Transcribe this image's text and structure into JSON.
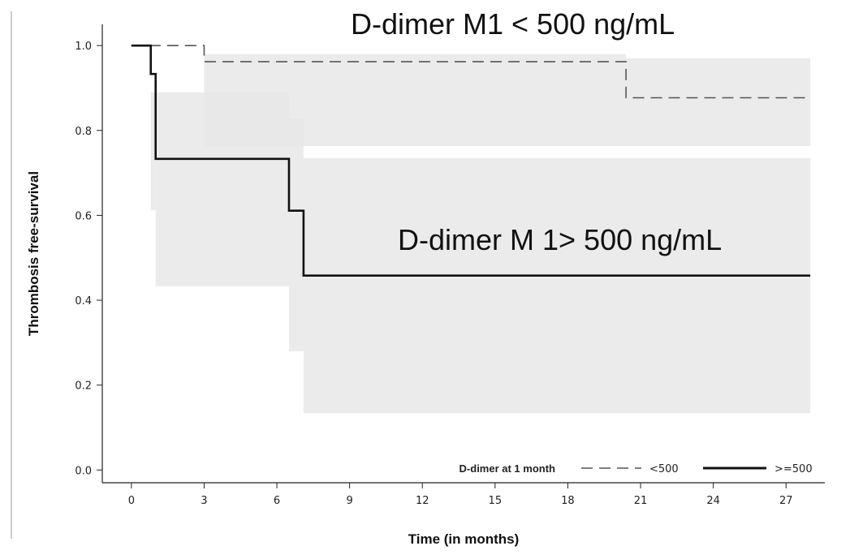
{
  "chart_data": {
    "type": "line",
    "subtype": "kaplan-meier step with confidence bands",
    "xlabel": "Time (in months)",
    "ylabel": "Thrombosis free-survival",
    "xlim": [
      -1.2,
      28.6
    ],
    "ylim": [
      -0.03,
      1.05
    ],
    "xticks": [
      0,
      3,
      6,
      9,
      12,
      15,
      18,
      21,
      24,
      27
    ],
    "yticks": [
      0.0,
      0.2,
      0.4,
      0.6,
      0.8,
      1.0
    ],
    "ytick_labels": [
      "0.0",
      "0.2",
      "0.4",
      "0.6",
      "0.8",
      "1.0"
    ],
    "grid": false,
    "legend": {
      "title": "D-dimer at 1 month",
      "placement": "bottom-right",
      "entries": [
        {
          "label": "<500",
          "style": "dashed"
        },
        {
          "label": ">=500",
          "style": "solid"
        }
      ]
    },
    "annotations": [
      {
        "text": "D-dimer M1 < 500 ng/mL",
        "x": 14.7,
        "y": 1.035
      },
      {
        "text": "D-dimer M 1> 500 ng/mL",
        "x": 17.0,
        "y": 0.64
      }
    ],
    "series": [
      {
        "label": "<500",
        "style": "dashed",
        "color": "#555555",
        "steps": [
          [
            0,
            1.0
          ],
          [
            3.0,
            0.962
          ],
          [
            20.4,
            0.877
          ],
          [
            28.0,
            0.877
          ]
        ],
        "band": [
          [
            3.0,
            0.763,
            0.98
          ],
          [
            20.4,
            0.763,
            0.97
          ],
          [
            28.0,
            0.763,
            0.97
          ]
        ]
      },
      {
        "label": ">=500",
        "style": "solid",
        "color": "#111111",
        "steps": [
          [
            0,
            1.0
          ],
          [
            0.8,
            0.933
          ],
          [
            1.0,
            0.733
          ],
          [
            6.5,
            0.611
          ],
          [
            7.1,
            0.458
          ],
          [
            28.0,
            0.458
          ]
        ],
        "band": [
          [
            0.8,
            0.612,
            0.89
          ],
          [
            1.0,
            0.433,
            0.89
          ],
          [
            6.5,
            0.28,
            0.827
          ],
          [
            7.1,
            0.134,
            0.735
          ],
          [
            28.0,
            0.134,
            0.735
          ]
        ]
      }
    ],
    "colors": {
      "band": "#e8e8e8",
      "overlap": "#dcdcdc"
    }
  }
}
